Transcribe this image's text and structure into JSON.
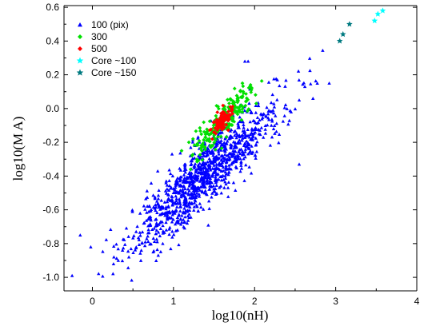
{
  "chart_data": {
    "type": "scatter",
    "xlabel": "log10(nH)",
    "ylabel": "log10(M A)",
    "xlim": [
      -0.35,
      4.0
    ],
    "ylim": [
      -1.08,
      0.61
    ],
    "x_ticks": [
      0,
      1,
      2,
      3,
      4
    ],
    "y_ticks": [
      -1.0,
      -0.8,
      -0.6,
      -0.4,
      -0.2,
      0.0,
      0.2,
      0.4,
      0.6
    ],
    "x_tick_labels": [
      "0",
      "1",
      "2",
      "3",
      "4"
    ],
    "y_tick_labels": [
      "-1.0",
      "-0.8",
      "-0.6",
      "-0.4",
      "-0.2",
      "0.0",
      "0.2",
      "0.4",
      "0.6"
    ],
    "grid": false,
    "legend_position": "top-left",
    "series": [
      {
        "name": "100 (pix)",
        "marker": "triangle",
        "color": "#0000ff",
        "cloud": {
          "count": 1100,
          "mean": [
            1.4,
            -0.38
          ],
          "sd_major": 0.5,
          "sd_minor": 0.09,
          "slope": 0.45
        },
        "points": [
          [
            -0.25,
            -0.99
          ],
          [
            -0.15,
            -0.75
          ],
          [
            -0.02,
            -0.82
          ],
          [
            2.92,
            0.15
          ],
          [
            2.62,
            0.13
          ],
          [
            2.72,
            0.06
          ],
          [
            2.55,
            0.05
          ],
          [
            2.45,
            -0.02
          ],
          [
            1.88,
            0.28
          ],
          [
            1.92,
            0.28
          ],
          [
            2.55,
            -0.33
          ],
          [
            0.75,
            -0.85
          ],
          [
            0.45,
            -0.88
          ],
          [
            1.05,
            -0.72
          ]
        ]
      },
      {
        "name": "300",
        "marker": "diamond",
        "color": "#00e000",
        "cloud": {
          "count": 230,
          "mean": [
            1.62,
            -0.07
          ],
          "sd_major": 0.2,
          "sd_minor": 0.045,
          "slope": 0.5
        },
        "points": [
          [
            1.95,
            0.14
          ],
          [
            1.85,
            0.15
          ],
          [
            1.35,
            -0.25
          ],
          [
            1.1,
            -0.25
          ],
          [
            2.02,
            0.03
          ]
        ]
      },
      {
        "name": "500",
        "marker": "diamond",
        "color": "#ff0000",
        "cloud": {
          "count": 90,
          "mean": [
            1.6,
            -0.08
          ],
          "sd_major": 0.08,
          "sd_minor": 0.025,
          "slope": 0.5
        },
        "points": []
      },
      {
        "name": "Core ~100",
        "marker": "star",
        "color": "#00ffff",
        "points": [
          [
            3.48,
            0.52
          ],
          [
            3.52,
            0.56
          ],
          [
            3.58,
            0.58
          ]
        ]
      },
      {
        "name": "Core ~150",
        "marker": "star",
        "color": "#007a80",
        "points": [
          [
            3.05,
            0.4
          ],
          [
            3.09,
            0.44
          ],
          [
            3.17,
            0.5
          ]
        ]
      }
    ]
  }
}
